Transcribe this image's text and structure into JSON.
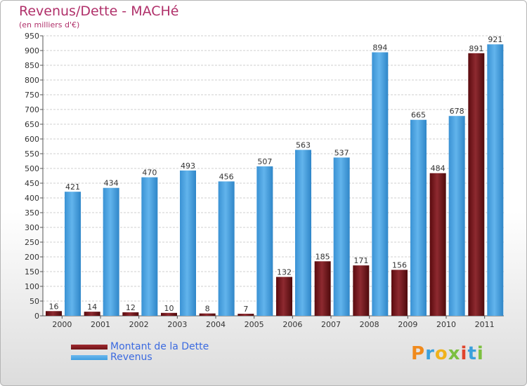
{
  "title": "Revenus/Dette - MACHé",
  "subtitle": "(en milliers d'€)",
  "brand": "Proxiti",
  "colors": {
    "debt": "#6e1418",
    "revenue": "#3f9ee0",
    "title": "#b0306a",
    "legend_text": "#3b6ae0"
  },
  "legend": [
    {
      "label": "Montant de la Dette",
      "color": "#6e1418"
    },
    {
      "label": "Revenus",
      "color": "#3f9ee0"
    }
  ],
  "chart_data": {
    "type": "bar",
    "categories": [
      "2000",
      "2001",
      "2002",
      "2003",
      "2004",
      "2005",
      "2006",
      "2007",
      "2008",
      "2009",
      "2010",
      "2011"
    ],
    "series": [
      {
        "name": "Montant de la Dette",
        "values": [
          16,
          14,
          12,
          10,
          8,
          7,
          132,
          185,
          171,
          156,
          484,
          891
        ]
      },
      {
        "name": "Revenus",
        "values": [
          421,
          434,
          470,
          493,
          456,
          507,
          563,
          537,
          894,
          665,
          678,
          921
        ]
      }
    ],
    "ylim": [
      0,
      950
    ],
    "yticks": [
      0,
      50,
      100,
      150,
      200,
      250,
      300,
      350,
      400,
      450,
      500,
      550,
      600,
      650,
      700,
      750,
      800,
      850,
      900,
      950
    ],
    "grid": true,
    "legend_position": "bottom-left"
  }
}
